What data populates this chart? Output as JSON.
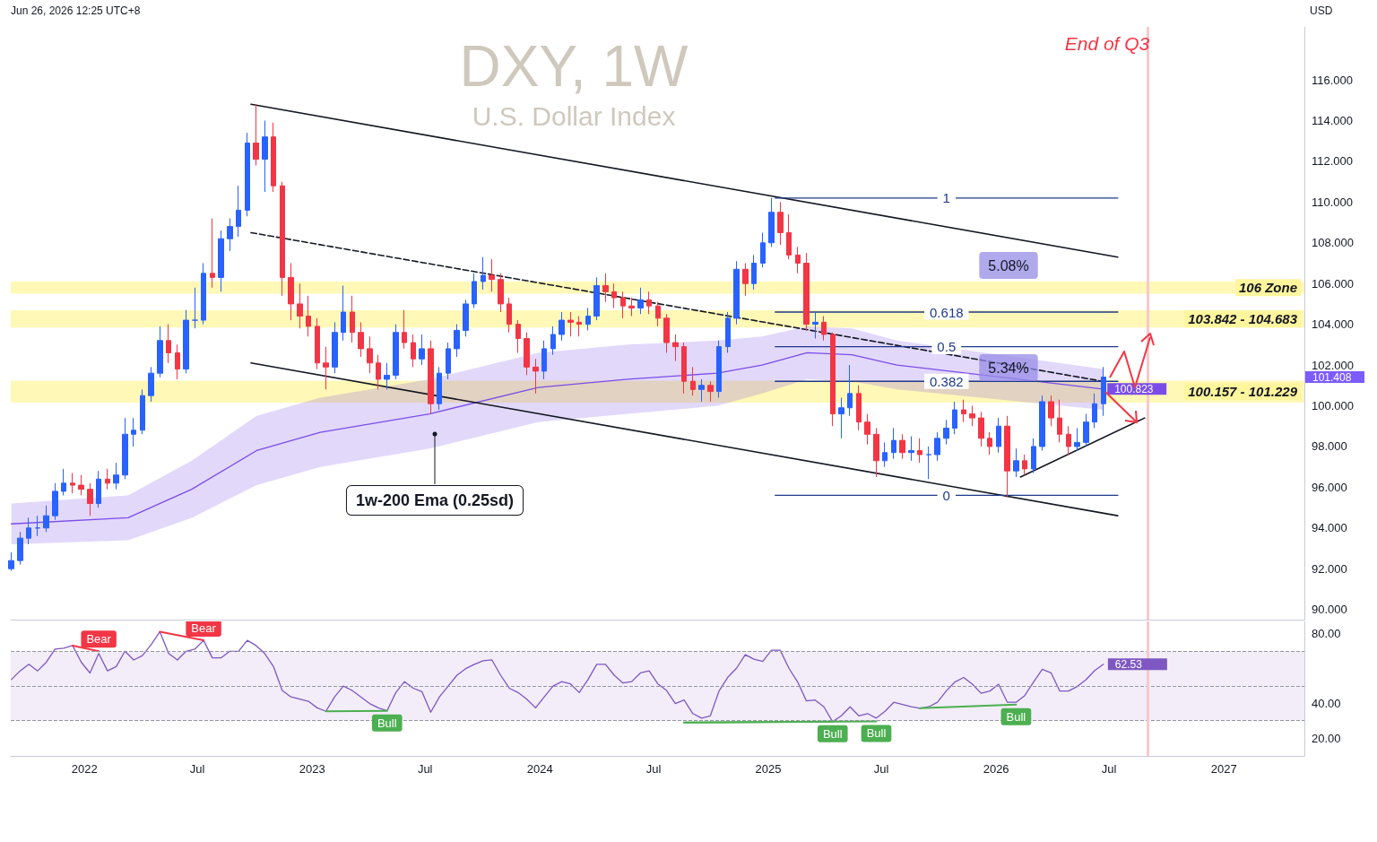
{
  "chart_data": [
    {
      "type": "candlestick",
      "title": "DXY, 1W",
      "subtitle": "U.S. Dollar Index",
      "ylabel": "USD",
      "x": [
        "2021-09-06",
        "2021-09-20",
        "2021-10-04",
        "2021-10-18",
        "2021-11-01",
        "2021-11-15",
        "2021-11-29",
        "2021-12-13",
        "2021-12-27",
        "2022-01-10",
        "2022-01-24",
        "2022-02-07",
        "2022-02-21",
        "2022-03-07",
        "2022-03-21",
        "2022-04-04",
        "2022-04-18",
        "2022-05-02",
        "2022-05-16",
        "2022-05-30",
        "2022-06-13",
        "2022-06-27",
        "2022-07-11",
        "2022-07-25",
        "2022-08-08",
        "2022-08-22",
        "2022-09-05",
        "2022-09-19",
        "2022-10-03",
        "2022-10-17",
        "2022-10-31",
        "2022-11-14",
        "2022-11-28",
        "2022-12-12",
        "2022-12-26",
        "2023-01-09",
        "2023-01-23",
        "2023-02-06",
        "2023-02-20",
        "2023-03-06",
        "2023-03-20",
        "2023-04-03",
        "2023-04-17",
        "2023-05-01",
        "2023-05-15",
        "2023-05-29",
        "2023-06-12",
        "2023-06-26",
        "2023-07-10",
        "2023-07-24",
        "2023-08-07",
        "2023-08-21",
        "2023-09-04",
        "2023-09-18",
        "2023-10-02",
        "2023-10-16",
        "2023-10-30",
        "2023-11-13",
        "2023-11-27",
        "2023-12-11",
        "2023-12-25",
        "2024-01-08",
        "2024-01-22",
        "2024-02-05",
        "2024-02-19",
        "2024-03-04",
        "2024-03-18",
        "2024-04-01",
        "2024-04-15",
        "2024-04-29",
        "2024-05-13",
        "2024-05-27",
        "2024-06-10",
        "2024-06-24",
        "2024-07-08",
        "2024-07-22",
        "2024-08-05",
        "2024-08-19",
        "2024-09-02",
        "2024-09-16",
        "2024-09-30",
        "2024-10-14",
        "2024-10-28",
        "2024-11-11",
        "2024-11-25",
        "2024-12-09",
        "2024-12-23",
        "2025-01-06",
        "2025-01-20",
        "2025-02-03",
        "2025-02-17",
        "2025-03-03",
        "2025-03-17",
        "2025-03-31",
        "2025-04-14",
        "2025-04-28",
        "2025-05-12",
        "2025-05-26",
        "2025-06-09",
        "2025-06-23",
        "2025-07-07",
        "2025-07-21",
        "2025-08-04",
        "2025-08-18",
        "2025-09-01",
        "2025-09-15",
        "2025-09-29",
        "2025-10-13",
        "2025-10-27",
        "2025-11-10",
        "2025-11-24",
        "2025-12-08",
        "2025-12-22",
        "2026-01-05",
        "2026-01-19",
        "2026-02-02",
        "2026-02-16",
        "2026-03-02",
        "2026-03-16",
        "2026-03-30",
        "2026-04-13",
        "2026-04-27",
        "2026-05-11",
        "2026-05-25",
        "2026-06-08",
        "2026-06-22"
      ],
      "ohlc": [
        [
          92.0,
          92.8,
          91.9,
          92.4
        ],
        [
          92.4,
          93.8,
          92.2,
          93.5
        ],
        [
          93.5,
          94.5,
          93.2,
          94.0
        ],
        [
          94.0,
          94.6,
          93.6,
          94.0
        ],
        [
          94.0,
          95.1,
          93.8,
          94.6
        ],
        [
          94.6,
          96.2,
          94.4,
          95.8
        ],
        [
          95.8,
          96.9,
          95.6,
          96.2
        ],
        [
          96.2,
          96.7,
          95.7,
          96.1
        ],
        [
          96.1,
          96.6,
          95.6,
          95.9
        ],
        [
          95.9,
          96.2,
          94.6,
          95.2
        ],
        [
          95.2,
          96.8,
          95.0,
          96.4
        ],
        [
          96.4,
          96.9,
          95.9,
          96.2
        ],
        [
          96.2,
          97.2,
          95.9,
          96.6
        ],
        [
          96.6,
          99.4,
          96.4,
          98.6
        ],
        [
          98.6,
          99.4,
          98.0,
          98.8
        ],
        [
          98.8,
          100.8,
          98.6,
          100.5
        ],
        [
          100.5,
          101.9,
          100.2,
          101.6
        ],
        [
          101.6,
          103.9,
          101.4,
          103.2
        ],
        [
          103.2,
          104.0,
          102.1,
          102.6
        ],
        [
          102.6,
          103.0,
          101.3,
          101.8
        ],
        [
          101.8,
          104.7,
          101.6,
          104.2
        ],
        [
          104.2,
          105.8,
          103.8,
          104.2
        ],
        [
          104.2,
          107.0,
          104.0,
          106.5
        ],
        [
          106.5,
          109.2,
          105.8,
          106.3
        ],
        [
          106.3,
          108.6,
          105.6,
          108.2
        ],
        [
          108.2,
          109.2,
          107.6,
          108.8
        ],
        [
          108.8,
          110.8,
          108.3,
          109.6
        ],
        [
          109.6,
          113.4,
          109.3,
          112.9
        ],
        [
          112.9,
          114.8,
          111.8,
          112.1
        ],
        [
          112.1,
          114.0,
          110.5,
          113.2
        ],
        [
          113.2,
          113.9,
          110.5,
          110.8
        ],
        [
          110.8,
          111.0,
          105.4,
          106.3
        ],
        [
          106.3,
          107.0,
          104.2,
          105.0
        ],
        [
          105.0,
          106.0,
          103.8,
          104.4
        ],
        [
          104.4,
          105.4,
          103.4,
          103.9
        ],
        [
          103.9,
          104.3,
          101.8,
          102.1
        ],
        [
          102.1,
          102.9,
          100.8,
          101.9
        ],
        [
          101.9,
          104.1,
          101.6,
          103.6
        ],
        [
          103.6,
          105.9,
          103.2,
          104.6
        ],
        [
          104.6,
          105.4,
          103.1,
          103.6
        ],
        [
          103.6,
          104.1,
          102.4,
          102.8
        ],
        [
          102.8,
          103.4,
          101.6,
          102.1
        ],
        [
          102.1,
          102.5,
          100.8,
          101.3
        ],
        [
          101.3,
          102.1,
          100.8,
          101.5
        ],
        [
          101.5,
          104.0,
          101.3,
          103.6
        ],
        [
          103.6,
          104.7,
          102.8,
          103.1
        ],
        [
          103.1,
          103.5,
          101.9,
          102.3
        ],
        [
          102.3,
          103.5,
          102.0,
          102.8
        ],
        [
          102.8,
          103.2,
          99.6,
          100.1
        ],
        [
          100.1,
          101.9,
          99.8,
          101.6
        ],
        [
          101.6,
          103.1,
          101.3,
          102.8
        ],
        [
          102.8,
          104.0,
          102.4,
          103.7
        ],
        [
          103.7,
          105.2,
          103.4,
          105.0
        ],
        [
          105.0,
          106.5,
          104.8,
          106.1
        ],
        [
          106.1,
          107.3,
          105.7,
          106.4
        ],
        [
          106.4,
          107.2,
          105.6,
          106.2
        ],
        [
          106.2,
          106.5,
          104.6,
          105.0
        ],
        [
          105.0,
          105.3,
          103.6,
          104.0
        ],
        [
          104.0,
          104.2,
          102.6,
          103.3
        ],
        [
          103.3,
          103.6,
          101.5,
          101.9
        ],
        [
          101.9,
          102.3,
          100.6,
          101.7
        ],
        [
          101.7,
          103.2,
          101.3,
          102.8
        ],
        [
          102.8,
          103.9,
          102.5,
          103.5
        ],
        [
          103.5,
          104.6,
          103.2,
          104.2
        ],
        [
          104.2,
          104.6,
          103.4,
          104.1
        ],
        [
          104.1,
          104.4,
          103.4,
          104.0
        ],
        [
          104.0,
          104.8,
          103.7,
          104.4
        ],
        [
          104.4,
          106.3,
          104.2,
          105.9
        ],
        [
          105.9,
          106.5,
          105.1,
          105.6
        ],
        [
          105.6,
          106.0,
          104.8,
          105.3
        ],
        [
          105.3,
          105.6,
          104.3,
          104.9
        ],
        [
          104.9,
          105.3,
          104.4,
          104.8
        ],
        [
          104.8,
          105.8,
          104.5,
          105.2
        ],
        [
          105.2,
          105.6,
          104.5,
          104.9
        ],
        [
          104.9,
          105.1,
          103.9,
          104.3
        ],
        [
          104.3,
          104.5,
          102.6,
          103.1
        ],
        [
          103.1,
          103.5,
          102.2,
          102.9
        ],
        [
          102.9,
          103.1,
          100.6,
          101.2
        ],
        [
          101.2,
          101.9,
          100.5,
          100.8
        ],
        [
          100.8,
          101.3,
          100.2,
          101.0
        ],
        [
          101.0,
          101.2,
          100.2,
          100.7
        ],
        [
          100.7,
          103.2,
          100.4,
          102.9
        ],
        [
          102.9,
          104.6,
          102.6,
          104.3
        ],
        [
          104.3,
          107.1,
          104.0,
          106.7
        ],
        [
          106.7,
          107.0,
          105.4,
          106.0
        ],
        [
          106.0,
          107.4,
          105.7,
          107.0
        ],
        [
          107.0,
          108.5,
          106.8,
          108.0
        ],
        [
          108.0,
          110.2,
          107.8,
          109.5
        ],
        [
          109.5,
          110.0,
          107.9,
          108.5
        ],
        [
          108.5,
          109.4,
          107.2,
          107.4
        ],
        [
          107.4,
          107.8,
          106.5,
          107.0
        ],
        [
          107.0,
          107.5,
          103.7,
          104.0
        ],
        [
          104.0,
          104.6,
          103.3,
          104.1
        ],
        [
          104.1,
          104.4,
          103.2,
          103.5
        ],
        [
          103.5,
          103.6,
          99.0,
          99.6
        ],
        [
          99.6,
          100.4,
          98.4,
          99.9
        ],
        [
          99.9,
          102.0,
          99.5,
          100.6
        ],
        [
          100.6,
          101.0,
          98.8,
          99.2
        ],
        [
          99.2,
          99.6,
          98.1,
          98.6
        ],
        [
          98.6,
          98.9,
          96.5,
          97.3
        ],
        [
          97.3,
          98.2,
          97.0,
          97.7
        ],
        [
          97.7,
          98.9,
          97.4,
          98.3
        ],
        [
          98.3,
          98.6,
          97.4,
          97.7
        ],
        [
          97.7,
          98.5,
          97.3,
          97.8
        ],
        [
          97.8,
          98.4,
          97.2,
          97.6
        ],
        [
          97.6,
          98.0,
          96.4,
          97.6
        ],
        [
          97.6,
          98.7,
          97.3,
          98.4
        ],
        [
          98.4,
          99.3,
          98.1,
          98.9
        ],
        [
          98.9,
          100.2,
          98.6,
          99.8
        ],
        [
          99.8,
          100.3,
          99.2,
          99.6
        ],
        [
          99.6,
          100.0,
          99.0,
          99.4
        ],
        [
          99.4,
          99.7,
          98.0,
          98.4
        ],
        [
          98.4,
          98.7,
          97.6,
          98.0
        ],
        [
          98.0,
          99.4,
          97.7,
          99.0
        ],
        [
          99.0,
          99.5,
          95.5,
          96.8
        ],
        [
          96.8,
          97.9,
          96.5,
          97.3
        ],
        [
          97.3,
          97.6,
          96.6,
          96.9
        ],
        [
          96.9,
          98.4,
          96.7,
          98.0
        ],
        [
          98.0,
          100.5,
          97.8,
          100.2
        ],
        [
          100.2,
          100.5,
          99.0,
          99.4
        ],
        [
          99.4,
          100.3,
          98.2,
          98.6
        ],
        [
          98.6,
          99.0,
          97.6,
          98.0
        ],
        [
          98.0,
          98.9,
          97.8,
          98.2
        ],
        [
          98.2,
          99.6,
          98.0,
          99.2
        ],
        [
          99.2,
          100.6,
          98.9,
          100.1
        ],
        [
          100.1,
          101.9,
          99.5,
          101.408
        ]
      ],
      "series": [
        {
          "type": "line",
          "color": "#7b4de8",
          "x": [
            "2021-09-06",
            "2022-03-12",
            "2022-06-22",
            "2022-10-04",
            "2023-01-14",
            "2023-07-08",
            "2023-12-29",
            "2024-05-21",
            "2024-10-11",
            "2024-12-22",
            "2025-03-04",
            "2025-05-15",
            "2025-07-26",
            "2026-06-21"
          ],
          "values": [
            94.2,
            94.5,
            95.9,
            97.8,
            98.7,
            99.6,
            100.9,
            101.3,
            101.6,
            102.0,
            102.6,
            102.5,
            102.0,
            100.823
          ],
          "lower": [
            93.2,
            93.4,
            94.5,
            96.1,
            97.0,
            97.9,
            99.2,
            99.6,
            100.0,
            100.6,
            101.3,
            101.2,
            100.8,
            99.8
          ],
          "upper": [
            95.2,
            95.6,
            97.3,
            99.5,
            100.4,
            101.3,
            102.6,
            103.0,
            103.2,
            103.4,
            103.9,
            103.8,
            103.2,
            101.8
          ],
          "value_labels": [
            null,
            null,
            null,
            null,
            null,
            null,
            null,
            null,
            null,
            null,
            null,
            null,
            null,
            "100.823"
          ]
        },
        {
          "type": "line",
          "color": "#131722",
          "x": [
            "2022-09-25",
            "2026-07-15"
          ],
          "values": [
            114.8,
            107.3
          ]
        },
        {
          "type": "line",
          "color": "#131722",
          "x": [
            "2022-09-25",
            "2026-07-15"
          ],
          "values": [
            102.1,
            94.6
          ]
        },
        {
          "type": "line",
          "color": "#131722",
          "line_style": "dashed",
          "x": [
            "2022-09-25",
            "2026-06-21"
          ],
          "values": [
            108.5,
            101.2
          ]
        },
        {
          "type": "line",
          "color": "#131722",
          "x": [
            "2026-02-09",
            "2026-08-27"
          ],
          "values": [
            96.5,
            99.4
          ]
        },
        {
          "type": "line",
          "name": "1",
          "color": "#1e3a8a",
          "x": [
            "2025-01-12",
            "2026-07-15"
          ],
          "values": [
            110.2,
            110.2
          ]
        },
        {
          "type": "line",
          "name": "0.618",
          "color": "#1e3a8a",
          "x": [
            "2025-01-12",
            "2026-07-15"
          ],
          "values": [
            104.6,
            104.6
          ]
        },
        {
          "type": "line",
          "name": "0.5",
          "color": "#1e3a8a",
          "x": [
            "2025-01-12",
            "2026-07-15"
          ],
          "values": [
            102.9,
            102.9
          ]
        },
        {
          "type": "line",
          "name": "0.382",
          "color": "#1e3a8a",
          "x": [
            "2025-01-12",
            "2026-07-15"
          ],
          "values": [
            101.2,
            101.2
          ]
        },
        {
          "type": "line",
          "name": "0",
          "color": "#1e3a8a",
          "x": [
            "2025-01-12",
            "2026-07-15"
          ],
          "values": [
            95.6,
            95.6
          ]
        }
      ],
      "bands": [
        {
          "axis": "y",
          "from": 105.5,
          "to": 106.1,
          "label": "106 Zone",
          "color": "#fff59d"
        },
        {
          "axis": "y",
          "from": 103.842,
          "to": 104.683,
          "label": "103.842 - 104.683",
          "color": "#fff59d"
        },
        {
          "axis": "y",
          "from": 100.157,
          "to": 101.229,
          "label": "100.157 - 101.229",
          "color": "#fff59d"
        }
      ],
      "ref_lines": [
        {
          "axis": "x",
          "value": "2026-09-01",
          "label": "End of Q3",
          "color": "#f8c8cc"
        }
      ],
      "annotations": [
        "Jun 26, 2026 12:25 UTC+8",
        "1w-200 Ema (0.25sd)",
        "5.08%",
        "5.34%"
      ],
      "xlim": [
        "2021-09-05",
        "2027-05-10"
      ],
      "ylim": [
        89.5,
        118.6
      ],
      "yticks": [
        {
          "value": 90,
          "label": "90.000"
        },
        {
          "value": 92,
          "label": "92.000"
        },
        {
          "value": 94,
          "label": "94.000"
        },
        {
          "value": 96,
          "label": "96.000"
        },
        {
          "value": 98,
          "label": "98.000"
        },
        {
          "value": 100,
          "label": "100.000"
        },
        {
          "value": 102,
          "label": "102.000"
        },
        {
          "value": 104,
          "label": "104.000"
        },
        {
          "value": 106,
          "label": "106.000"
        },
        {
          "value": 108,
          "label": "108.000"
        },
        {
          "value": 110,
          "label": "110.000"
        },
        {
          "value": 112,
          "label": "112.000"
        },
        {
          "value": 114,
          "label": "114.000"
        },
        {
          "value": 116,
          "label": "116.000"
        }
      ],
      "tick_labels": "y",
      "value_labels": [
        null,
        null,
        null,
        null,
        null,
        null,
        null,
        null,
        null,
        null,
        null,
        null,
        null,
        null,
        null,
        null,
        null,
        null,
        null,
        null,
        null,
        null,
        null,
        null,
        null,
        null,
        null,
        null,
        null,
        null,
        null,
        null,
        null,
        null,
        null,
        null,
        null,
        null,
        null,
        null,
        null,
        null,
        null,
        null,
        null,
        null,
        null,
        null,
        null,
        null,
        null,
        null,
        null,
        null,
        null,
        null,
        null,
        null,
        null,
        null,
        null,
        null,
        null,
        null,
        null,
        null,
        null,
        null,
        null,
        null,
        null,
        null,
        null,
        null,
        null,
        null,
        null,
        null,
        null,
        null,
        null,
        null,
        null,
        null,
        null,
        null,
        null,
        null,
        null,
        null,
        null,
        null,
        null,
        null,
        null,
        null,
        null,
        null,
        null,
        null,
        null,
        null,
        null,
        null,
        null,
        null,
        null,
        null,
        null,
        null,
        null,
        null,
        null,
        null,
        null,
        null,
        null,
        null,
        null,
        null,
        null,
        null,
        null,
        null,
        null,
        "101.408"
      ]
    },
    {
      "type": "line",
      "series": [
        {
          "color": "#7e57c2",
          "x": [
            "2021-09-06",
            "2021-09-20",
            "2021-10-04",
            "2021-10-18",
            "2021-11-01",
            "2021-11-15",
            "2021-11-29",
            "2021-12-13",
            "2021-12-27",
            "2022-01-10",
            "2022-01-24",
            "2022-02-07",
            "2022-02-21",
            "2022-03-07",
            "2022-03-21",
            "2022-04-04",
            "2022-04-18",
            "2022-05-02",
            "2022-05-16",
            "2022-05-30",
            "2022-06-13",
            "2022-06-27",
            "2022-07-11",
            "2022-07-25",
            "2022-08-08",
            "2022-08-22",
            "2022-09-05",
            "2022-09-19",
            "2022-10-03",
            "2022-10-17",
            "2022-10-31",
            "2022-11-14",
            "2022-11-28",
            "2022-12-12",
            "2022-12-26",
            "2023-01-09",
            "2023-01-23",
            "2023-02-06",
            "2023-02-20",
            "2023-03-06",
            "2023-03-20",
            "2023-04-03",
            "2023-04-17",
            "2023-05-01",
            "2023-05-15",
            "2023-05-29",
            "2023-06-12",
            "2023-06-26",
            "2023-07-10",
            "2023-07-24",
            "2023-08-07",
            "2023-08-21",
            "2023-09-04",
            "2023-09-18",
            "2023-10-02",
            "2023-10-16",
            "2023-10-30",
            "2023-11-13",
            "2023-11-27",
            "2023-12-11",
            "2023-12-25",
            "2024-01-08",
            "2024-01-22",
            "2024-02-05",
            "2024-02-19",
            "2024-03-04",
            "2024-03-18",
            "2024-04-01",
            "2024-04-15",
            "2024-04-29",
            "2024-05-13",
            "2024-05-27",
            "2024-06-10",
            "2024-06-24",
            "2024-07-08",
            "2024-07-22",
            "2024-08-05",
            "2024-08-19",
            "2024-09-02",
            "2024-09-16",
            "2024-09-30",
            "2024-10-14",
            "2024-10-28",
            "2024-11-11",
            "2024-11-25",
            "2024-12-09",
            "2024-12-23",
            "2025-01-06",
            "2025-01-20",
            "2025-02-03",
            "2025-02-17",
            "2025-03-03",
            "2025-03-17",
            "2025-03-31",
            "2025-04-14",
            "2025-04-28",
            "2025-05-12",
            "2025-05-26",
            "2025-06-09",
            "2025-06-23",
            "2025-07-07",
            "2025-07-21",
            "2025-08-04",
            "2025-08-18",
            "2025-09-01",
            "2025-09-15",
            "2025-09-29",
            "2025-10-13",
            "2025-10-27",
            "2025-11-10",
            "2025-11-24",
            "2025-12-08",
            "2025-12-22",
            "2026-01-05",
            "2026-01-19",
            "2026-02-02",
            "2026-02-16",
            "2026-03-02",
            "2026-03-16",
            "2026-03-30",
            "2026-04-13",
            "2026-04-27",
            "2026-05-11",
            "2026-05-25",
            "2026-06-08",
            "2026-06-22"
          ],
          "values": [
            53.7,
            58.7,
            62.5,
            58.7,
            63.7,
            71.2,
            71.8,
            73.3,
            63.7,
            57.5,
            68.7,
            58.7,
            61.2,
            70.0,
            65.0,
            67.5,
            73.8,
            81.3,
            68.7,
            65.0,
            70.0,
            71.2,
            76.3,
            66.2,
            66.2,
            70.0,
            70.0,
            76.3,
            73.3,
            68.7,
            61.2,
            47.4,
            43.7,
            42.4,
            41.2,
            37.4,
            35.4,
            43.7,
            49.9,
            47.4,
            43.7,
            39.9,
            37.4,
            35.7,
            46.2,
            52.5,
            48.7,
            46.7,
            34.9,
            43.7,
            49.9,
            56.2,
            60.0,
            62.5,
            64.5,
            65.0,
            56.2,
            48.7,
            46.2,
            42.4,
            37.4,
            43.7,
            49.9,
            52.5,
            51.2,
            46.2,
            53.7,
            62.5,
            62.5,
            56.2,
            51.7,
            52.5,
            57.5,
            58.7,
            51.2,
            47.4,
            39.9,
            41.9,
            34.1,
            31.5,
            32.8,
            47.1,
            55.0,
            60.2,
            68.0,
            65.4,
            64.1,
            70.6,
            70.6,
            60.2,
            52.3,
            41.4,
            41.9,
            38.0,
            29.4,
            32.8,
            38.0,
            32.8,
            34.1,
            31.5,
            35.4,
            40.6,
            39.3,
            38.0,
            37.2,
            38.0,
            40.6,
            47.1,
            52.3,
            54.9,
            51.0,
            45.8,
            47.1,
            51.0,
            40.6,
            40.6,
            44.5,
            52.3,
            59.6,
            57.6,
            47.1,
            47.1,
            49.7,
            53.6,
            58.9,
            62.53
          ],
          "value_labels": [
            null,
            null,
            null,
            null,
            null,
            null,
            null,
            null,
            null,
            null,
            null,
            null,
            null,
            null,
            null,
            null,
            null,
            null,
            null,
            null,
            null,
            null,
            null,
            null,
            null,
            null,
            null,
            null,
            null,
            null,
            null,
            null,
            null,
            null,
            null,
            null,
            null,
            null,
            null,
            null,
            null,
            null,
            null,
            null,
            null,
            null,
            null,
            null,
            null,
            null,
            null,
            null,
            null,
            null,
            null,
            null,
            null,
            null,
            null,
            null,
            null,
            null,
            null,
            null,
            null,
            null,
            null,
            null,
            null,
            null,
            null,
            null,
            null,
            null,
            null,
            null,
            null,
            null,
            null,
            null,
            null,
            null,
            null,
            null,
            null,
            null,
            null,
            null,
            null,
            null,
            null,
            null,
            null,
            null,
            null,
            null,
            null,
            null,
            null,
            null,
            null,
            null,
            null,
            null,
            null,
            null,
            null,
            null,
            null,
            null,
            null,
            null,
            null,
            null,
            null,
            null,
            null,
            null,
            null,
            null,
            null,
            null,
            null,
            null,
            null,
            "62.53"
          ]
        },
        {
          "name": "Bear",
          "color": "#f23645",
          "x": [
            "2021-12-13",
            "2022-01-24"
          ],
          "values": [
            73.3,
            70.0
          ]
        },
        {
          "name": "Bear",
          "color": "#f23645",
          "x": [
            "2022-05-02",
            "2022-07-11"
          ],
          "values": [
            81.3,
            76.3
          ]
        },
        {
          "name": "Bull",
          "color": "#4caf50",
          "x": [
            "2023-01-23",
            "2023-05-01"
          ],
          "values": [
            35.4,
            35.7
          ]
        },
        {
          "name": "Bull",
          "color": "#4caf50",
          "x": [
            "2024-08-19",
            "2025-04-14"
          ],
          "values": [
            28.9,
            29.4
          ]
        },
        {
          "name": "Bull",
          "color": "#4caf50",
          "x": [
            "2024-08-19",
            "2025-06-23"
          ],
          "values": [
            28.9,
            29.6
          ]
        },
        {
          "name": "Bull",
          "color": "#4caf50",
          "x": [
            "2025-09-01",
            "2026-02-02"
          ],
          "values": [
            37.2,
            39.3
          ]
        }
      ],
      "bands": [
        {
          "axis": "y",
          "from": 30,
          "to": 70,
          "color": "#ede7f6"
        }
      ],
      "ref_lines": [
        {
          "axis": "y",
          "value": 70,
          "color": "#9598a1",
          "line_style": "dashed"
        },
        {
          "axis": "y",
          "value": 50,
          "color": "#9598a1",
          "line_style": "dashed"
        },
        {
          "axis": "y",
          "value": 30,
          "color": "#9598a1",
          "line_style": "dashed"
        },
        {
          "axis": "x",
          "value": "2026-09-01",
          "color": "#f8c8cc"
        }
      ],
      "xlim": [
        "2021-09-05",
        "2027-05-10"
      ],
      "xticks": [
        {
          "value": "2022-01-01",
          "label": "2022"
        },
        {
          "value": "2022-07-01",
          "label": "Jul"
        },
        {
          "value": "2023-01-01",
          "label": "2023"
        },
        {
          "value": "2023-07-01",
          "label": "Jul"
        },
        {
          "value": "2024-01-01",
          "label": "2024"
        },
        {
          "value": "2024-07-01",
          "label": "Jul"
        },
        {
          "value": "2025-01-01",
          "label": "2025"
        },
        {
          "value": "2025-07-01",
          "label": "Jul"
        },
        {
          "value": "2026-01-01",
          "label": "2026"
        },
        {
          "value": "2026-07-01",
          "label": "Jul"
        },
        {
          "value": "2027-01-01",
          "label": "2027"
        }
      ],
      "ylim": [
        9.7,
        87.2
      ],
      "yticks": [
        {
          "value": 20,
          "label": "20.00"
        },
        {
          "value": 40,
          "label": "40.00"
        },
        {
          "value": 80,
          "label": "80.00"
        }
      ]
    }
  ]
}
